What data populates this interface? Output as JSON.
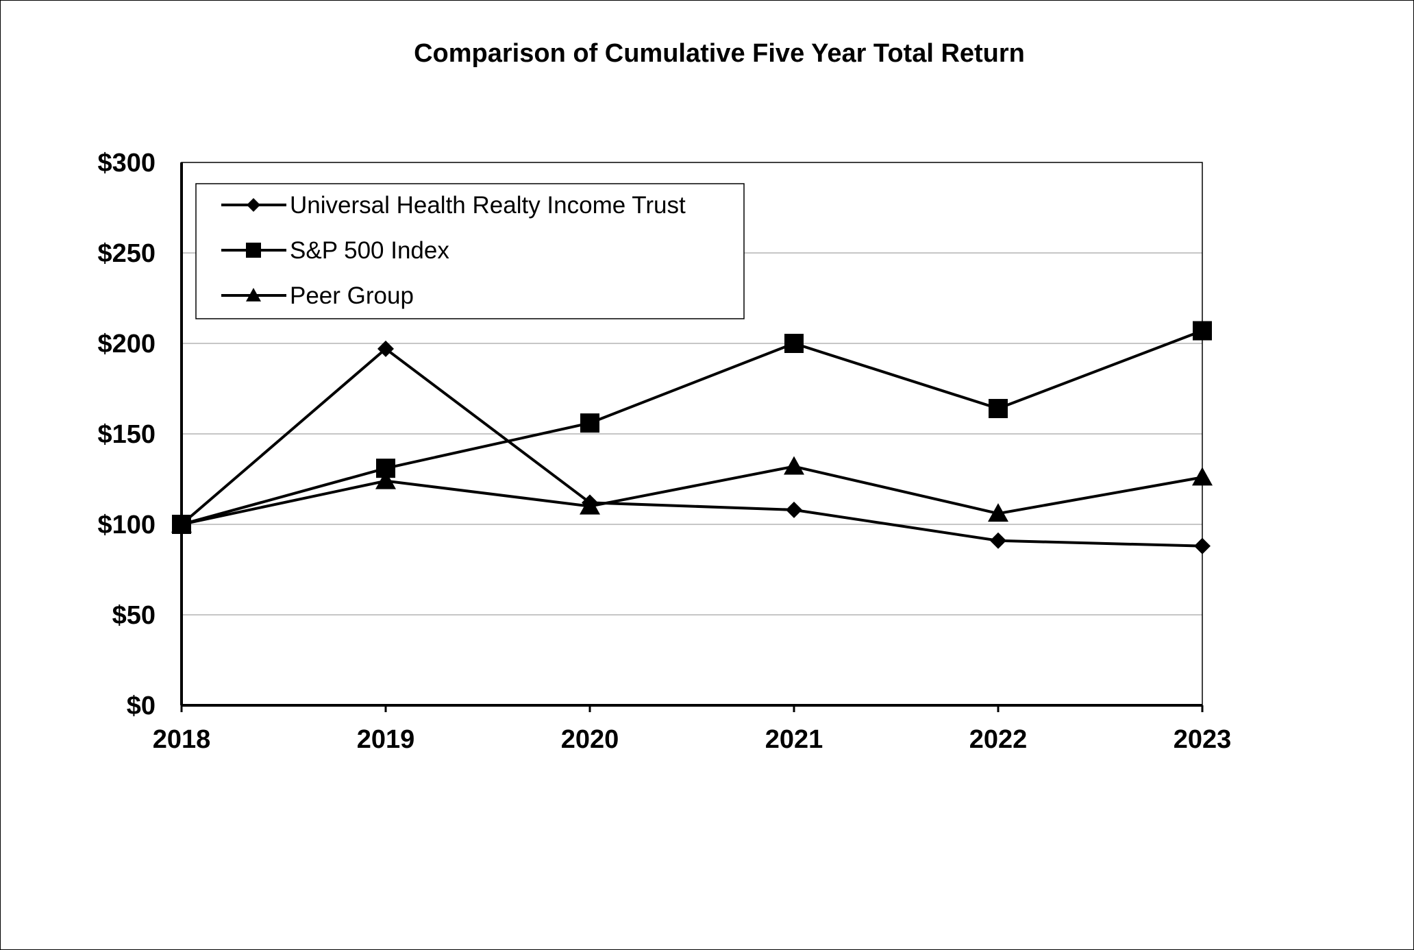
{
  "chart_data": {
    "type": "line",
    "title": "Comparison of Cumulative Five Year Total Return",
    "xlabel": "",
    "ylabel": "",
    "categories": [
      "2018",
      "2019",
      "2020",
      "2021",
      "2022",
      "2023"
    ],
    "ylim": [
      0,
      300
    ],
    "y_ticks": [
      0,
      50,
      100,
      150,
      200,
      250,
      300
    ],
    "y_tick_labels": [
      "$0",
      "$50",
      "$100",
      "$150",
      "$200",
      "$250",
      "$300"
    ],
    "grid": true,
    "legend_position": "top-left",
    "series": [
      {
        "name": "Universal Health Realty Income Trust",
        "marker": "diamond",
        "values": [
          100,
          197,
          112,
          108,
          91,
          88
        ]
      },
      {
        "name": "S&P 500 Index",
        "marker": "square",
        "values": [
          100,
          131,
          156,
          200,
          164,
          207
        ]
      },
      {
        "name": "Peer Group",
        "marker": "triangle",
        "values": [
          100,
          124,
          110,
          132,
          106,
          126
        ]
      }
    ],
    "colors": {
      "line": "#000000",
      "grid": "#b3b3b3",
      "background": "#ffffff"
    }
  }
}
